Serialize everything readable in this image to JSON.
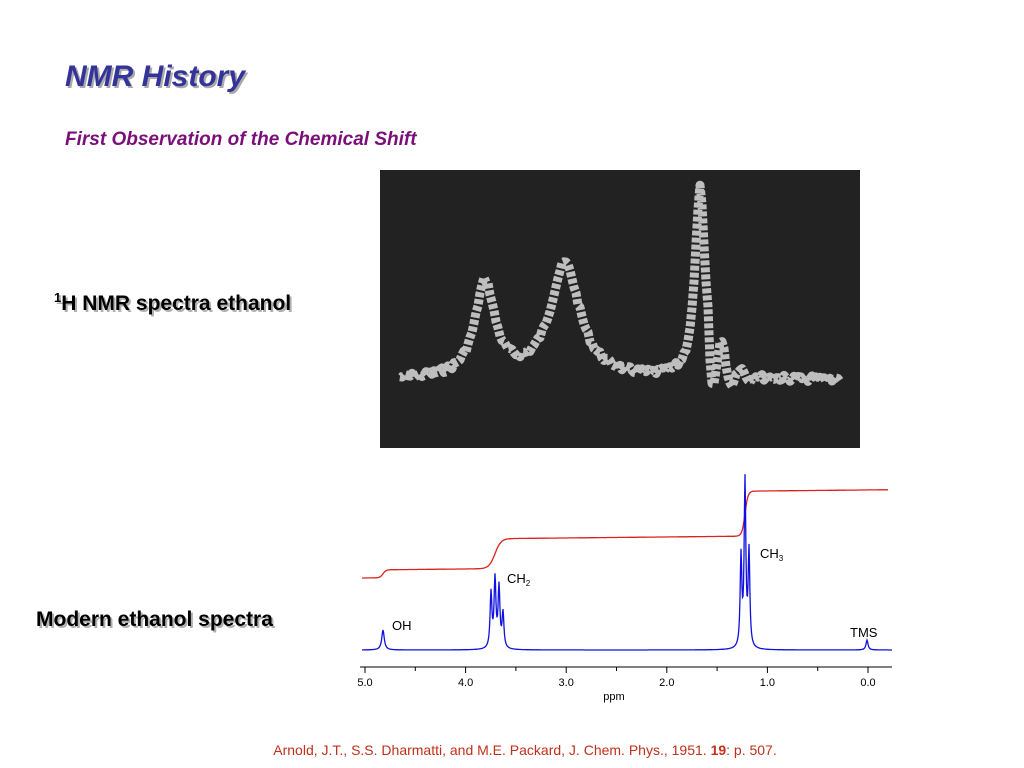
{
  "header": {
    "title": "NMR History",
    "subtitle": "First Observation of the Chemical Shift"
  },
  "historical": {
    "label_superscript": "1",
    "label": "H NMR spectra ethanol"
  },
  "modern": {
    "label": "Modern ethanol spectra",
    "peaks": [
      {
        "text": "OH"
      },
      {
        "text": "CH",
        "sub": "2"
      },
      {
        "text": "CH",
        "sub": "3"
      },
      {
        "text": "TMS"
      }
    ],
    "axis_ticks": [
      "5.0",
      "4.0",
      "3.0",
      "2.0",
      "1.0",
      "0.0"
    ],
    "axis_label": "ppm"
  },
  "citation": {
    "before": "Arnold, J.T., S.S. Dharmatti, and M.E. Packard, J. Chem. Phys., 1951. ",
    "volume": "19",
    "after": ": p. 507."
  }
}
